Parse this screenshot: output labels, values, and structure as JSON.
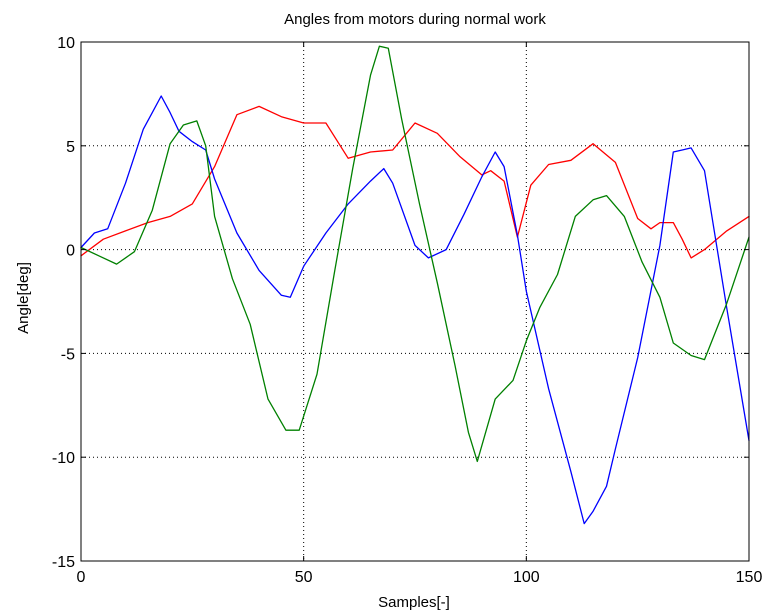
{
  "chart_data": {
    "type": "line",
    "title": "Angles from motors during normal work",
    "xlabel": "Samples[-]",
    "ylabel": "Angle[deg]",
    "xlim": [
      0,
      150
    ],
    "ylim": [
      -15,
      10
    ],
    "xticks": [
      0,
      50,
      100,
      150
    ],
    "yticks": [
      -15,
      -10,
      -5,
      0,
      5,
      10
    ],
    "xtick_labels": [
      "0",
      "50",
      "100",
      "150"
    ],
    "ytick_labels": [
      "-15",
      "-10",
      "-5",
      "0",
      "5",
      "10"
    ],
    "grid": true,
    "legend": "none",
    "series": [
      {
        "color": "#ff0000",
        "x": [
          0,
          5,
          10,
          15,
          20,
          25,
          30,
          35,
          40,
          45,
          50,
          55,
          60,
          65,
          70,
          75,
          80,
          85,
          90,
          92,
          95,
          98,
          101,
          105,
          110,
          115,
          120,
          125,
          128,
          130,
          133,
          135,
          137,
          140,
          145,
          150
        ],
        "y": [
          -0.3,
          0.5,
          0.9,
          1.3,
          1.6,
          2.2,
          4.0,
          6.5,
          6.9,
          6.4,
          6.1,
          6.1,
          4.4,
          4.7,
          4.8,
          6.1,
          5.6,
          4.5,
          3.6,
          3.8,
          3.3,
          0.6,
          3.1,
          4.1,
          4.3,
          5.1,
          4.2,
          1.5,
          1.0,
          1.3,
          1.3,
          0.5,
          -0.4,
          0.0,
          0.9,
          1.6
        ]
      },
      {
        "color": "#0000ff",
        "x": [
          0,
          3,
          6,
          10,
          14,
          16,
          18,
          20,
          22,
          25,
          28,
          30,
          35,
          40,
          45,
          47,
          50,
          55,
          60,
          65,
          68,
          70,
          75,
          78,
          82,
          86,
          90,
          93,
          95,
          98,
          100,
          105,
          110,
          113,
          115,
          118,
          120,
          125,
          130,
          133,
          135,
          137,
          140,
          145,
          150
        ],
        "y": [
          0.1,
          0.8,
          1.0,
          3.2,
          5.8,
          6.6,
          7.4,
          6.6,
          5.7,
          5.2,
          4.8,
          3.4,
          0.8,
          -1.0,
          -2.2,
          -2.3,
          -0.8,
          0.8,
          2.2,
          3.3,
          3.9,
          3.2,
          0.2,
          -0.4,
          0.0,
          1.7,
          3.5,
          4.7,
          4.0,
          0.7,
          -2.0,
          -6.7,
          -10.7,
          -13.2,
          -12.6,
          -11.4,
          -9.6,
          -5.2,
          0.2,
          4.7,
          4.8,
          4.9,
          3.8,
          -2.8,
          -9.2
        ]
      },
      {
        "color": "#008000",
        "x": [
          0,
          4,
          8,
          12,
          16,
          20,
          23,
          26,
          28,
          30,
          34,
          38,
          42,
          46,
          49,
          53,
          57,
          61,
          65,
          67,
          69,
          72,
          76,
          80,
          84,
          87,
          89,
          93,
          97,
          100,
          103,
          107,
          111,
          115,
          118,
          122,
          126,
          130,
          133,
          137,
          140,
          145,
          150
        ],
        "y": [
          0.1,
          -0.3,
          -0.7,
          -0.1,
          1.9,
          5.1,
          6.0,
          6.2,
          5.0,
          1.6,
          -1.4,
          -3.6,
          -7.2,
          -8.7,
          -8.7,
          -6.0,
          -1.0,
          3.9,
          8.4,
          9.8,
          9.7,
          6.3,
          2.2,
          -1.6,
          -5.6,
          -8.8,
          -10.2,
          -7.2,
          -6.3,
          -4.4,
          -2.8,
          -1.2,
          1.6,
          2.4,
          2.6,
          1.6,
          -0.6,
          -2.3,
          -4.5,
          -5.1,
          -5.3,
          -2.6,
          0.6
        ]
      }
    ]
  }
}
